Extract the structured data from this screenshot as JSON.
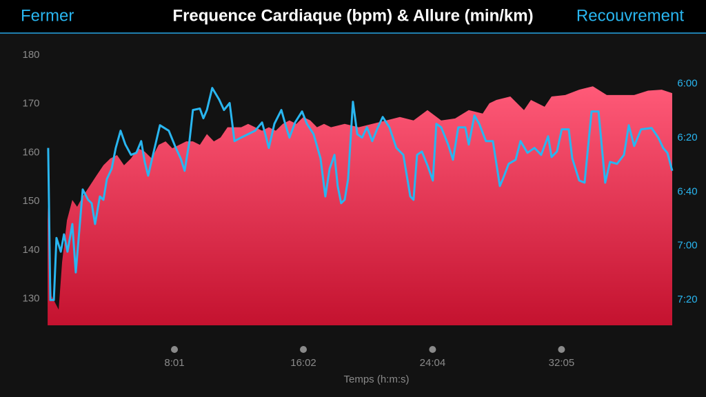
{
  "header": {
    "left": "Fermer",
    "title": "Frequence Cardiaque (bpm) & Allure (min/km)",
    "right": "Recouvrement"
  },
  "chart_data": {
    "type": "line",
    "xlabel": "Temps (h:m:s)",
    "xlim": [
      0,
      2338
    ],
    "xticks": [
      {
        "value": 481,
        "label": "8:01"
      },
      {
        "value": 962,
        "label": "16:02"
      },
      {
        "value": 1444,
        "label": "24:04"
      },
      {
        "value": 1925,
        "label": "32:05"
      }
    ],
    "ylim": [
      124.6,
      182.1
    ],
    "yticks": [
      130,
      140,
      150,
      160,
      170,
      180
    ],
    "y2lim": [
      7.49,
      5.76
    ],
    "y2ticks": [
      {
        "value": 6.0,
        "label": "6:00"
      },
      {
        "value": 6.333,
        "label": "6:20"
      },
      {
        "value": 6.667,
        "label": "6:40"
      },
      {
        "value": 7.0,
        "label": "7:00"
      },
      {
        "value": 7.333,
        "label": "7:20"
      }
    ],
    "series": [
      {
        "type": "area",
        "color": "#ff4f6e",
        "x": [
          8,
          23,
          49,
          62,
          80,
          100,
          118,
          139,
          165,
          190,
          216,
          242,
          267,
          293,
          319,
          345,
          370,
          396,
          422,
          448,
          473,
          499,
          525,
          550,
          576,
          602,
          628,
          653,
          679,
          705,
          730,
          756,
          782,
          808,
          833,
          859,
          885,
          910,
          936,
          962,
          988,
          1013,
          1039,
          1065,
          1116,
          1168,
          1219,
          1271,
          1322,
          1373,
          1425,
          1476,
          1528,
          1579,
          1631,
          1656,
          1682,
          1734,
          1785,
          1811,
          1862,
          1888,
          1939,
          1991,
          2042,
          2094,
          2196,
          2248,
          2299,
          2338
        ],
        "values": [
          148.9,
          130.6,
          127.8,
          137.6,
          146.1,
          150.3,
          148.9,
          151.0,
          153.2,
          155.3,
          157.4,
          158.8,
          159.5,
          157.4,
          158.8,
          160.9,
          160.2,
          158.8,
          161.6,
          162.3,
          160.9,
          161.6,
          162.3,
          162.3,
          161.6,
          163.8,
          162.3,
          163.1,
          165.2,
          165.2,
          165.2,
          165.9,
          165.2,
          164.5,
          165.2,
          164.5,
          165.9,
          166.6,
          165.9,
          167.3,
          166.6,
          165.2,
          165.9,
          165.2,
          165.9,
          165.2,
          165.9,
          166.6,
          167.3,
          166.6,
          168.7,
          166.6,
          167.0,
          168.7,
          168.0,
          170.1,
          170.8,
          171.5,
          168.7,
          170.8,
          169.4,
          171.5,
          171.8,
          172.9,
          173.6,
          171.8,
          171.8,
          172.7,
          172.9,
          172.2
        ]
      },
      {
        "type": "line",
        "axis": "y2",
        "color": "#29b6f0",
        "x": [
          10,
          18,
          31,
          41,
          57,
          69,
          82,
          100,
          113,
          139,
          159,
          172,
          185,
          203,
          216,
          229,
          247,
          262,
          280,
          298,
          319,
          339,
          357,
          370,
          383,
          401,
          427,
          460,
          486,
          504,
          519,
          537,
          550,
          576,
          589,
          602,
          622,
          648,
          666,
          687,
          705,
          730,
          756,
          782,
          808,
          820,
          833,
          854,
          880,
          898,
          910,
          931,
          957,
          975,
          1000,
          1026,
          1044,
          1060,
          1078,
          1090,
          1103,
          1116,
          1129,
          1147,
          1163,
          1181,
          1199,
          1219,
          1240,
          1258,
          1283,
          1309,
          1335,
          1361,
          1373,
          1386,
          1404,
          1425,
          1445,
          1458,
          1476,
          1502,
          1520,
          1540,
          1566,
          1579,
          1600,
          1618,
          1643,
          1669,
          1695,
          1708,
          1728,
          1754,
          1772,
          1798,
          1824,
          1849,
          1875,
          1888,
          1908,
          1926,
          1952,
          1965,
          1991,
          2011,
          2037,
          2063,
          2088,
          2106,
          2132,
          2158,
          2176,
          2196,
          2222,
          2261,
          2286,
          2304,
          2320,
          2338
        ],
        "values": [
          6.396,
          7.334,
          7.334,
          6.951,
          7.036,
          6.929,
          7.036,
          6.865,
          7.164,
          6.652,
          6.716,
          6.737,
          6.865,
          6.695,
          6.716,
          6.588,
          6.524,
          6.396,
          6.29,
          6.375,
          6.439,
          6.426,
          6.354,
          6.482,
          6.567,
          6.439,
          6.256,
          6.29,
          6.396,
          6.46,
          6.537,
          6.354,
          6.162,
          6.153,
          6.213,
          6.162,
          6.026,
          6.098,
          6.162,
          6.119,
          6.354,
          6.332,
          6.311,
          6.29,
          6.239,
          6.311,
          6.396,
          6.247,
          6.162,
          6.269,
          6.332,
          6.239,
          6.171,
          6.247,
          6.311,
          6.46,
          6.695,
          6.524,
          6.439,
          6.631,
          6.737,
          6.716,
          6.588,
          6.111,
          6.311,
          6.332,
          6.269,
          6.354,
          6.269,
          6.205,
          6.269,
          6.396,
          6.439,
          6.695,
          6.716,
          6.439,
          6.418,
          6.503,
          6.597,
          6.247,
          6.269,
          6.375,
          6.469,
          6.269,
          6.269,
          6.375,
          6.196,
          6.247,
          6.354,
          6.354,
          6.631,
          6.58,
          6.494,
          6.469,
          6.354,
          6.426,
          6.396,
          6.439,
          6.324,
          6.452,
          6.418,
          6.281,
          6.281,
          6.46,
          6.597,
          6.61,
          6.171,
          6.171,
          6.61,
          6.482,
          6.494,
          6.439,
          6.256,
          6.384,
          6.281,
          6.273,
          6.332,
          6.396,
          6.426,
          6.537
        ]
      }
    ]
  }
}
